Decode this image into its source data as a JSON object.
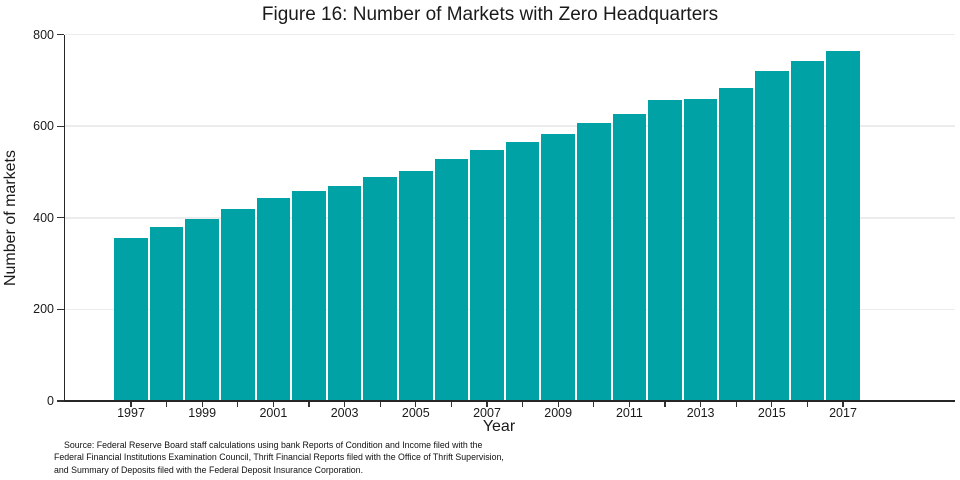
{
  "chart_data": {
    "type": "bar",
    "title": "Figure 16: Number of Markets with Zero Headquarters",
    "xlabel": "Year",
    "ylabel": "Number of markets",
    "categories": [
      "1997",
      "1998",
      "1999",
      "2000",
      "2001",
      "2002",
      "2003",
      "2004",
      "2005",
      "2006",
      "2007",
      "2008",
      "2009",
      "2010",
      "2011",
      "2012",
      "2013",
      "2014",
      "2015",
      "2016",
      "2017"
    ],
    "values": [
      355,
      380,
      397,
      420,
      443,
      459,
      470,
      490,
      501,
      528,
      548,
      566,
      583,
      607,
      626,
      657,
      659,
      684,
      721,
      742,
      764
    ],
    "ylim": [
      0,
      800
    ],
    "yticks": [
      0,
      200,
      400,
      600,
      800
    ],
    "xticks_shown": [
      "1997",
      "1999",
      "2001",
      "2003",
      "2005",
      "2007",
      "2009",
      "2011",
      "2013",
      "2015",
      "2017"
    ],
    "bar_color": "#00A2A5",
    "gridline_color": "#ECECEC",
    "axis_color": "#262626",
    "grid": true,
    "legend_position": "none"
  },
  "source_note": {
    "lines": [
      "Source: Federal Reserve Board staff calculations using bank Reports of Condition and Income filed with the",
      "Federal Financial Institutions Examination Council, Thrift Financial Reports filed with the Office of Thrift Supervision,",
      "and Summary of Deposits filed with the Federal Deposit Insurance Corporation."
    ]
  }
}
